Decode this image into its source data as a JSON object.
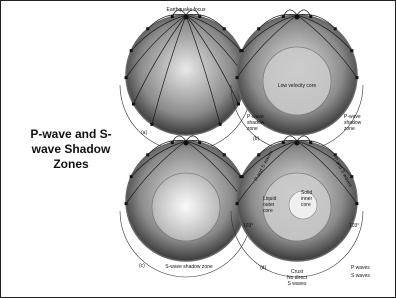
{
  "title": "P-wave and S-wave Shadow Zones",
  "panels": [
    {
      "label": "(a)",
      "annotations": [
        {
          "lines": [
            "Earthquake focus"
          ]
        }
      ]
    },
    {
      "label": "(b)",
      "annotations": [
        {
          "lines": [
            "Low velocity core"
          ]
        },
        {
          "lines": [
            "P-wave",
            "shadow",
            "zone"
          ]
        },
        {
          "lines": [
            "P-wave",
            "shadow",
            "zone"
          ]
        }
      ]
    },
    {
      "label": "(c)",
      "annotations": [
        {
          "lines": [
            "S-wave shadow zone"
          ]
        }
      ]
    },
    {
      "label": "(d)",
      "annotations": [
        {
          "lines": [
            "Liquid",
            "outer",
            "core"
          ]
        },
        {
          "lines": [
            "Solid",
            "inner",
            "core"
          ]
        },
        {
          "lines": [
            "P and S waves"
          ]
        },
        {
          "lines": [
            "P and S waves"
          ]
        },
        {
          "lines": [
            "103°"
          ]
        },
        {
          "lines": [
            "103°"
          ]
        },
        {
          "lines": [
            "Crust"
          ]
        },
        {
          "lines": [
            "No direct",
            "S waves"
          ]
        },
        {
          "lines": [
            "P waves"
          ]
        },
        {
          "lines": [
            "S waves"
          ]
        }
      ]
    }
  ]
}
